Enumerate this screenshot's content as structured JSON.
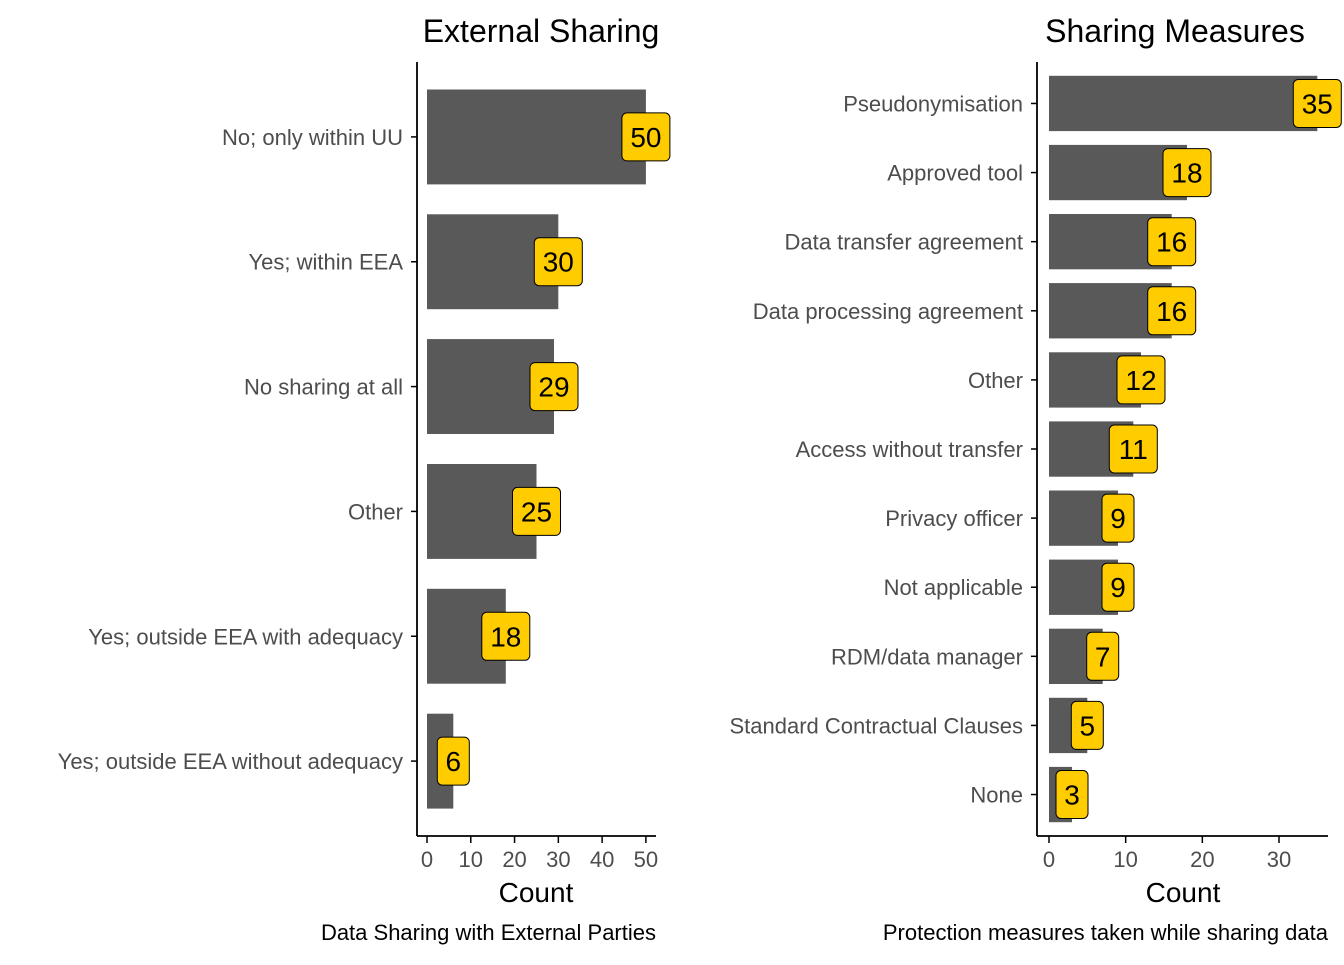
{
  "chart_data": [
    {
      "type": "bar",
      "orientation": "horizontal",
      "title": "External Sharing",
      "xlabel": "Count",
      "caption": "Data Sharing with External Parties",
      "categories": [
        "No; only within UU",
        "Yes; within EEA",
        "No sharing at all",
        "Other",
        "Yes; outside EEA with adequacy",
        "Yes; outside EEA without adequacy"
      ],
      "values": [
        50,
        30,
        29,
        25,
        18,
        6
      ],
      "labels": [
        "50",
        "30",
        "29",
        "25",
        "18",
        "6"
      ],
      "xlim": [
        0,
        52
      ],
      "xticks": [
        0,
        10,
        20,
        30,
        40,
        50
      ],
      "xtick_labels": [
        "0",
        "10",
        "20",
        "30",
        "40",
        "50"
      ],
      "grid": false
    },
    {
      "type": "bar",
      "orientation": "horizontal",
      "title": "Sharing Measures",
      "xlabel": "Count",
      "caption": "Protection measures taken while sharing data",
      "categories": [
        "Pseudonymisation",
        "Approved tool",
        "Data transfer agreement",
        "Data processing agreement",
        "Other",
        "Access without transfer",
        "Privacy officer",
        "Not applicable",
        "RDM/data manager",
        "Standard Contractual Clauses",
        "None"
      ],
      "values": [
        35,
        18,
        16,
        16,
        12,
        11,
        9,
        9,
        7,
        5,
        3
      ],
      "labels": [
        "35",
        "18",
        "16",
        "16",
        "12",
        "11",
        "9",
        "9",
        "7",
        "5",
        "3"
      ],
      "xlim": [
        0,
        36.5
      ],
      "xticks": [
        0,
        10,
        20,
        30
      ],
      "xtick_labels": [
        "0",
        "10",
        "20",
        "30"
      ],
      "grid": false
    }
  ],
  "colors": {
    "bar": "#595959",
    "label_fill": "#FFCC00",
    "axis": "#000000",
    "tick_text": "#4D4D4D",
    "title_text": "#000000"
  }
}
